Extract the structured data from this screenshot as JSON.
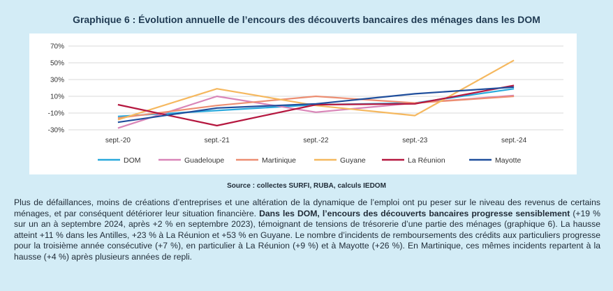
{
  "title": "Graphique 6 : Évolution annuelle de l’encours des découverts bancaires des ménages dans les DOM",
  "source": "Source : collectes SURFI, RUBA, calculs IEDOM",
  "paragraph": {
    "p1": "Plus de défaillances, moins de créations d’entreprises et une altération de la dynamique de l’emploi ont pu peser sur le niveau des revenus de certains ménages, et par conséquent détériorer leur situation financière. ",
    "bold": "Dans les DOM, l’encours des découverts bancaires progresse sensiblement",
    "p2": " (+19 % sur un an à septembre 2024, après +2 % en septembre 2023), témoignant de tensions de trésorerie d’une partie des ménages (graphique 6). La hausse atteint +11 % dans les Antilles, +23 % à La Réunion et +53 % en Guyane. Le nombre d’incidents de remboursements des crédits aux particuliers progresse pour la troisième année consécutive (+7 %), en particulier à La Réunion (+9 %) et à Mayotte (+26 %). En Martinique, ces mêmes incidents repartent à la hausse (+4 %) après plusieurs années de repli."
  },
  "chart_data": {
    "type": "line",
    "categories": [
      "sept.-20",
      "sept.-21",
      "sept.-22",
      "sept.-23",
      "sept.-24"
    ],
    "ylim": [
      -30,
      70
    ],
    "yticks": [
      -30,
      -10,
      10,
      30,
      50,
      70
    ],
    "ytick_labels": [
      "-30%",
      "-10%",
      "10%",
      "30%",
      "50%",
      "70%"
    ],
    "grid": true,
    "legend": "bottom",
    "series": [
      {
        "name": "DOM",
        "color": "#29a9dc",
        "values": [
          -14,
          -7,
          0,
          2,
          19
        ]
      },
      {
        "name": "Guadeloupe",
        "color": "#d985b8",
        "values": [
          -28,
          10,
          -9,
          2,
          11
        ]
      },
      {
        "name": "Martinique",
        "color": "#ec8e72",
        "values": [
          -16,
          -1,
          10,
          2,
          10
        ]
      },
      {
        "name": "Guyane",
        "color": "#f5b85f",
        "values": [
          -18,
          19,
          -1,
          -13,
          53
        ]
      },
      {
        "name": "La Réunion",
        "color": "#b5173f",
        "values": [
          0,
          -25,
          0,
          1,
          23
        ]
      },
      {
        "name": "Mayotte",
        "color": "#1f4e9c",
        "values": [
          -21,
          -4,
          1,
          13,
          21
        ]
      }
    ]
  }
}
